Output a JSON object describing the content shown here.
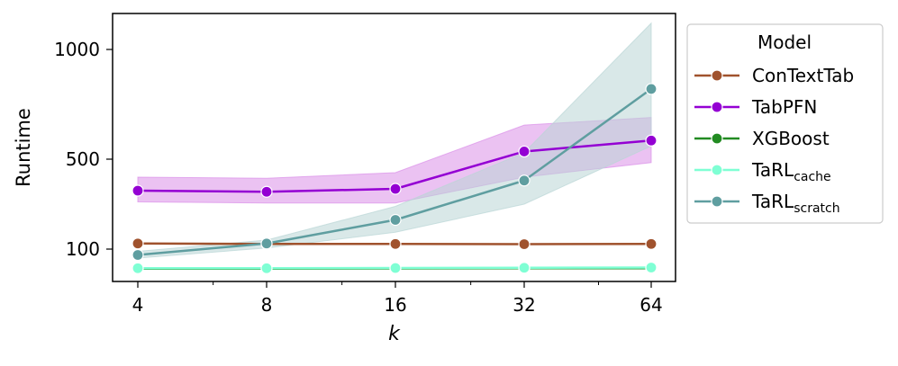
{
  "chart_data": {
    "type": "line",
    "title": "",
    "xlabel": "k",
    "ylabel": "Runtime",
    "x": [
      4,
      8,
      16,
      32,
      64
    ],
    "x_scale": "log2",
    "x_ticks": [
      "4",
      "8",
      "16",
      "32",
      "64"
    ],
    "y_ticks": [
      {
        "value": 100,
        "label": "100"
      },
      {
        "value": 500,
        "label": "500"
      },
      {
        "value": 1000,
        "label": "1000"
      }
    ],
    "ylim": [
      -50,
      1250
    ],
    "grid": false,
    "legend": {
      "title": "Model",
      "position": "outside-right"
    },
    "series": [
      {
        "name": "ConTextTab",
        "name_main": "ConTextTab",
        "name_sub": "",
        "color": "#a0522d",
        "values": [
          125,
          123,
          123,
          122,
          123
        ],
        "band_low": null,
        "band_high": null
      },
      {
        "name": "TabPFN",
        "name_main": "TabPFN",
        "name_sub": "",
        "color": "#9400d3",
        "values": [
          360,
          355,
          368,
          535,
          585
        ],
        "band_low": [
          310,
          305,
          305,
          420,
          485
        ],
        "band_high": [
          420,
          415,
          440,
          655,
          690
        ],
        "band_color": "#da8fe8"
      },
      {
        "name": "XGBoost",
        "name_main": "XGBoost",
        "name_sub": "",
        "color": "#228b22",
        "values": [
          13,
          13,
          14,
          15,
          15
        ],
        "band_low": null,
        "band_high": null
      },
      {
        "name": "TaRL_cache",
        "name_main": "TaRL",
        "name_sub": "cache",
        "color": "#7fffd4",
        "values": [
          15,
          15,
          16,
          17,
          18
        ],
        "band_low": null,
        "band_high": null
      },
      {
        "name": "TaRL_scratch",
        "name_main": "TaRL",
        "name_sub": "scratch",
        "color": "#5f9ea0",
        "values": [
          74,
          125,
          230,
          405,
          820
        ],
        "band_low": [
          60,
          105,
          175,
          300,
          560
        ],
        "band_high": [
          90,
          140,
          290,
          530,
          1120
        ],
        "band_color": "#b9d6d6"
      }
    ]
  }
}
